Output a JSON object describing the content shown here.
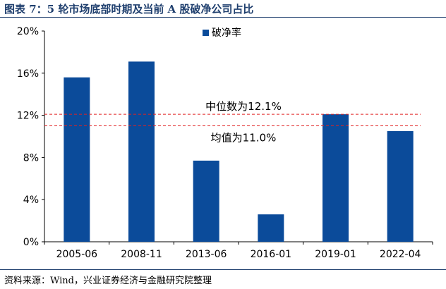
{
  "figure_title": "图表 7：5 轮市场底部时期及当前 A 股破净公司占比",
  "source_note": "资料来源：Wind，兴业证券经济与金融研究院整理",
  "colors": {
    "bar": "#0b4b9a",
    "reference_line": "#e02020",
    "title": "#1f3f6e"
  },
  "chart_data": {
    "type": "bar",
    "title": "",
    "xlabel": "",
    "ylabel": "",
    "categories": [
      "2005-06",
      "2008-11",
      "2013-06",
      "2016-01",
      "2019-01",
      "2022-04"
    ],
    "series": [
      {
        "name": "破净率",
        "values": [
          15.6,
          17.1,
          7.7,
          2.6,
          12.1,
          10.5
        ]
      }
    ],
    "ylim": [
      0,
      20
    ],
    "yticks": [
      0,
      4,
      8,
      12,
      16,
      20
    ],
    "ytick_labels": [
      "0%",
      "4%",
      "8%",
      "12%",
      "16%",
      "20%"
    ],
    "grid": false,
    "legend_position": "top-right",
    "reference_lines": [
      {
        "label": "中位数为12.1%",
        "value": 12.1
      },
      {
        "label": "均值为11.0%",
        "value": 11.0
      }
    ]
  }
}
